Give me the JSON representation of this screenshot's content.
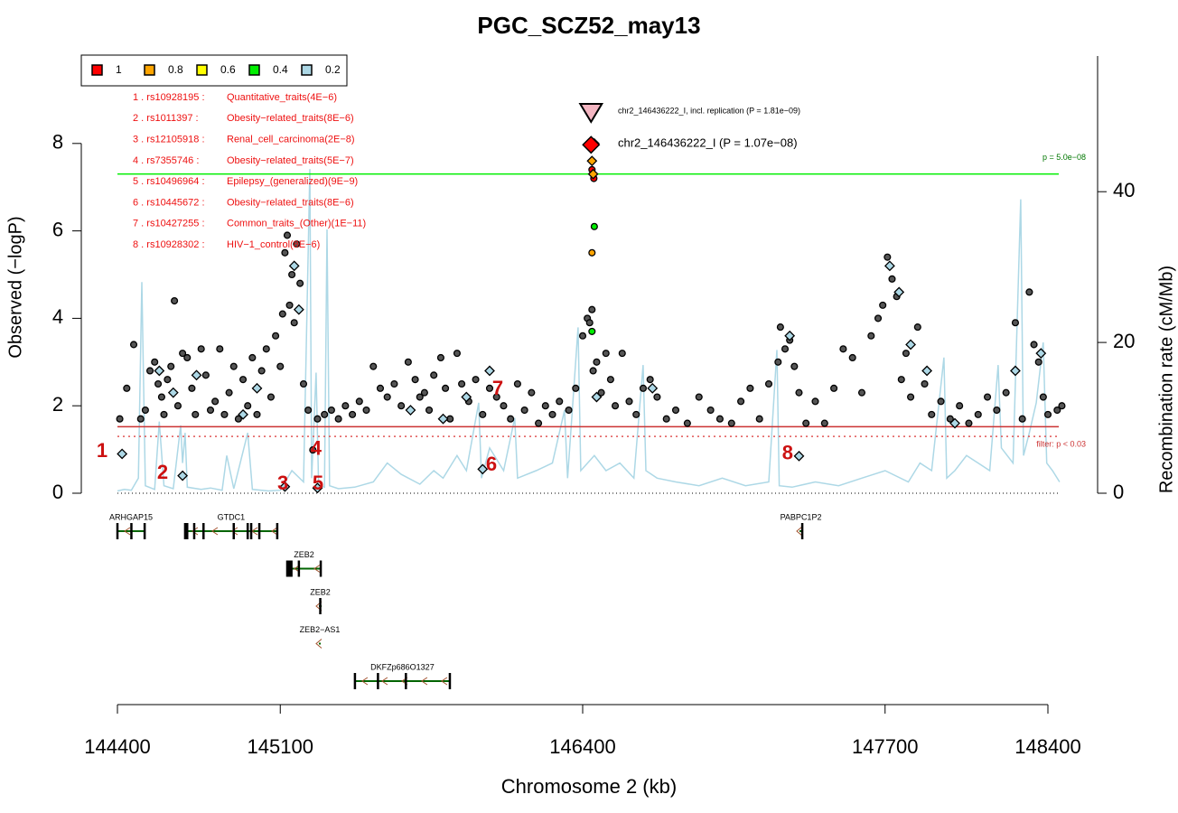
{
  "chart_data": {
    "type": "scatter",
    "title": "PGC_SCZ52_may13",
    "xlabel": "Chromosome 2 (kb)",
    "ylabel": "Observed (−logP)",
    "y2label": "Recombination rate (cM/Mb)",
    "xlim": [
      144400,
      148400
    ],
    "xticks": [
      144400,
      145100,
      146400,
      147700,
      148400
    ],
    "ylim": [
      0,
      10
    ],
    "yticks": [
      0,
      2,
      4,
      6,
      8
    ],
    "y2lim": [
      0,
      58
    ],
    "y2ticks": [
      0,
      20,
      40
    ],
    "legend": [
      {
        "label": "1",
        "color": "#ff0000"
      },
      {
        "label": "0.8",
        "color": "#ffa500"
      },
      {
        "label": "0.6",
        "color": "#ffff00"
      },
      {
        "label": "0.4",
        "color": "#00ee00"
      },
      {
        "label": "0.2",
        "color": "#add8e6"
      }
    ],
    "annotations": [
      [
        "1 . rs10928195 :",
        "Quantitative_traits(4E−6)"
      ],
      [
        "2 . rs1011397 :",
        "Obesity−related_traits(8E−6)"
      ],
      [
        "3 . rs12105918 :",
        "Renal_cell_carcinoma(2E−8)"
      ],
      [
        "4 . rs7355746 :",
        "Obesity−related_traits(5E−7)"
      ],
      [
        "5 . rs10496964 :",
        "Epilepsy_(generalized)(9E−9)"
      ],
      [
        "6 . rs10445672 :",
        "Obesity−related_traits(8E−6)"
      ],
      [
        "7 . rs10427255 :",
        "Common_traits_(Other)(1E−11)"
      ],
      [
        "8 . rs10928302 :",
        "HIV−1_control(8E−6)"
      ]
    ],
    "hits": [
      {
        "label": "1",
        "x": 144334,
        "y": 0.95
      },
      {
        "label": "2",
        "x": 144594,
        "y": 0.45
      },
      {
        "label": "3",
        "x": 145111,
        "y": 0.2
      },
      {
        "label": "4",
        "x": 145254,
        "y": 1.0
      },
      {
        "label": "5",
        "x": 145262,
        "y": 0.2
      },
      {
        "label": "6",
        "x": 146008,
        "y": 0.64
      },
      {
        "label": "7",
        "x": 146035,
        "y": 2.37
      },
      {
        "label": "8",
        "x": 147281,
        "y": 0.89
      }
    ],
    "lines": [
      {
        "value": 7.3,
        "color": "#00ee00",
        "label": "p = 5.0e−08",
        "label_color": "#007700"
      },
      {
        "value": 1.52,
        "color": "#cc3333"
      },
      {
        "value": 1.3,
        "color": "#e05555",
        "dash": true,
        "label": "filter: p < 0.03",
        "label_color": "#cc3333"
      }
    ],
    "recombination": {
      "color": "#add8e6",
      "x": [
        144400,
        144430,
        144460,
        144490,
        144505,
        144520,
        144560,
        144580,
        144600,
        144640,
        144672,
        144680,
        144691,
        144700,
        144760,
        144800,
        144850,
        144870,
        144900,
        144960,
        144980,
        145050,
        145100,
        145150,
        145200,
        145227,
        145235,
        145254,
        145265,
        145290,
        145301,
        145312,
        145350,
        145420,
        145500,
        145560,
        145620,
        145700,
        145760,
        145800,
        145860,
        145900,
        145953,
        145965,
        146000,
        146060,
        146108,
        146120,
        146200,
        146270,
        146322,
        146335,
        146380,
        146392,
        146450,
        146500,
        146560,
        146620,
        146660,
        146672,
        146720,
        146800,
        146900,
        147000,
        147100,
        147200,
        147235,
        147245,
        147300,
        147400,
        147500,
        147600,
        147700,
        147800,
        147850,
        147900,
        147953,
        147965,
        148000,
        148050,
        148100,
        148150,
        148186,
        148200,
        148250,
        148283,
        148295,
        148320,
        148350,
        148380,
        148395,
        148420,
        148450
      ],
      "values": [
        0.3,
        0.5,
        0.4,
        2.0,
        28,
        1.0,
        0.5,
        9.5,
        1.0,
        0.6,
        9,
        4,
        8,
        0.8,
        0.5,
        0.7,
        0.4,
        5,
        0.6,
        8,
        0.5,
        0.3,
        0.4,
        3,
        1.5,
        43,
        2,
        16,
        1,
        0.8,
        35,
        1.0,
        0.6,
        0.8,
        1.5,
        4,
        2.5,
        1.2,
        3,
        2,
        5,
        3,
        12,
        2,
        6,
        3,
        10,
        2,
        3,
        4,
        11,
        2,
        22,
        3,
        5,
        3,
        4,
        2,
        17,
        3,
        2,
        1.5,
        1.0,
        2,
        1,
        1.5,
        19,
        1,
        0.8,
        1.5,
        1.0,
        2,
        3,
        1.5,
        4,
        3,
        18,
        2,
        3,
        5,
        4,
        3,
        17,
        6,
        4,
        39,
        5,
        8,
        12,
        20,
        4,
        3,
        1.5
      ]
    },
    "series": [
      {
        "color": "#555555",
        "marker": "circle",
        "x": [
          144410,
          144440,
          144470,
          144500,
          144520,
          144540,
          144560,
          144575,
          144590,
          144600,
          144615,
          144630,
          144645,
          144660,
          144680,
          144700,
          144720,
          144735,
          144760,
          144780,
          144800,
          144820,
          144840,
          144860,
          144880,
          144900,
          144920,
          144940,
          144960,
          144980,
          145000,
          145020,
          145040,
          145060,
          145080,
          145100,
          145110,
          145120,
          145130,
          145140,
          145150,
          145160,
          145170,
          145185,
          145200,
          145220,
          145240,
          145260,
          145290,
          145320,
          145350,
          145380,
          145410,
          145440,
          145470,
          145500,
          145530,
          145560,
          145590,
          145620,
          145650,
          145680,
          145700,
          145720,
          145740,
          145760,
          145790,
          145810,
          145830,
          145860,
          145880,
          145910,
          145940,
          145970,
          146000,
          146030,
          146060,
          146090,
          146120,
          146150,
          146180,
          146210,
          146240,
          146270,
          146300,
          146340,
          146370,
          146400,
          146420,
          146430,
          146440,
          146445,
          146460,
          146480,
          146500,
          146520,
          146540,
          146570,
          146600,
          146630,
          146660,
          146690,
          146720,
          146760,
          146800,
          146850,
          146900,
          146950,
          146990,
          147040,
          147080,
          147120,
          147160,
          147200,
          147240,
          147250,
          147270,
          147290,
          147310,
          147330,
          147360,
          147400,
          147440,
          147480,
          147520,
          147560,
          147600,
          147640,
          147670,
          147690,
          147710,
          147730,
          147750,
          147770,
          147790,
          147810,
          147840,
          147870,
          147900,
          147940,
          147980,
          148020,
          148060,
          148100,
          148140,
          148180,
          148220,
          148260,
          148290,
          148320,
          148340,
          148360,
          148380,
          148400,
          148440,
          148460
        ],
        "values": [
          1.7,
          2.4,
          3.4,
          1.7,
          1.9,
          2.8,
          3.0,
          2.5,
          2.2,
          1.8,
          2.6,
          2.9,
          4.4,
          2.0,
          3.2,
          3.1,
          2.4,
          1.8,
          3.3,
          2.7,
          1.9,
          2.1,
          3.3,
          1.8,
          2.3,
          2.9,
          1.7,
          2.6,
          2.0,
          3.1,
          1.8,
          2.8,
          3.3,
          2.2,
          3.6,
          2.9,
          4.1,
          5.5,
          5.9,
          4.3,
          5.0,
          3.9,
          5.7,
          4.8,
          2.5,
          1.9,
          0.99,
          1.7,
          1.8,
          1.9,
          1.7,
          2.0,
          1.8,
          2.1,
          1.9,
          2.9,
          2.4,
          2.2,
          2.5,
          2.0,
          3.0,
          2.6,
          2.2,
          2.3,
          1.9,
          2.7,
          3.1,
          2.4,
          1.7,
          3.2,
          2.5,
          2.1,
          2.6,
          1.8,
          2.4,
          2.2,
          2.0,
          1.7,
          2.5,
          1.9,
          2.3,
          1.6,
          2.0,
          1.8,
          2.1,
          1.9,
          2.4,
          3.6,
          4.0,
          3.9,
          4.2,
          2.8,
          3.0,
          2.3,
          3.2,
          2.6,
          2.0,
          3.2,
          2.1,
          1.8,
          2.4,
          2.6,
          2.2,
          1.7,
          1.9,
          1.6,
          2.2,
          1.9,
          1.7,
          1.6,
          2.1,
          2.4,
          1.7,
          2.5,
          3.0,
          3.8,
          3.3,
          3.5,
          2.9,
          2.3,
          1.6,
          2.1,
          1.6,
          2.4,
          3.3,
          3.1,
          2.3,
          3.6,
          4.0,
          4.3,
          5.4,
          4.9,
          4.5,
          2.6,
          3.2,
          2.2,
          3.8,
          2.5,
          1.8,
          2.1,
          1.7,
          2.0,
          1.6,
          1.8,
          2.2,
          1.9,
          2.3,
          3.9,
          1.7,
          4.6,
          3.4,
          3.0,
          2.2,
          1.8,
          1.9,
          2.0
        ]
      },
      {
        "color": "#add8e6",
        "marker": "diamond",
        "x": [
          144420,
          144580,
          144640,
          144680,
          144740,
          144940,
          145000,
          145120,
          145160,
          145180,
          145260,
          145660,
          145800,
          145900,
          145970,
          146000,
          146460,
          146700,
          147290,
          147330,
          147720,
          147760,
          147810,
          147880,
          148000,
          148260,
          148370
        ],
        "values": [
          0.9,
          2.8,
          2.3,
          0.4,
          2.7,
          1.8,
          2.4,
          0.15,
          5.2,
          4.2,
          0.12,
          1.9,
          1.7,
          2.2,
          0.55,
          2.8,
          2.2,
          2.4,
          3.6,
          0.85,
          5.2,
          4.6,
          3.4,
          2.8,
          1.6,
          2.8,
          3.2
        ]
      },
      {
        "color": "#00ee00",
        "marker": "circle",
        "x": [
          146450,
          146440
        ],
        "values": [
          6.1,
          3.7
        ]
      },
      {
        "color": "#ffa500",
        "marker": "circle",
        "x": [
          146440
        ],
        "values": [
          5.5
        ]
      },
      {
        "color": "#ff0000",
        "marker": "circle",
        "x": [
          146440,
          146448
        ],
        "values": [
          7.4,
          7.2
        ]
      },
      {
        "color": "#ffa500",
        "marker": "diamond",
        "x": [
          146440,
          146445
        ],
        "values": [
          7.6,
          7.3
        ]
      },
      {
        "color": "#ff0000",
        "marker": "diamond",
        "x": [
          146450
        ],
        "values": [
          8.0
        ]
      }
    ],
    "top": {
      "x": 146436,
      "y": 7.97,
      "color": "#ff0000",
      "label": "chr2_146436222_I (P = 1.07e−08)"
    },
    "replication": {
      "x": 146436,
      "y": 8.74,
      "color": "#f4b6c2",
      "label": "chr2_146436222_I, incl. replication (P = 1.81e−09)"
    },
    "genes": [
      {
        "name": "ARHGAP15",
        "start": 144400,
        "end": 144517,
        "row": 0,
        "exons": [
          144400,
          144460,
          144517
        ]
      },
      {
        "name": "GTDC1",
        "start": 144691,
        "end": 145087,
        "row": 0,
        "exons": [
          144691,
          144700,
          144730,
          144770,
          144900,
          144960,
          144975,
          145010,
          145087
        ]
      },
      {
        "name": "PABPC1P2",
        "start": 147332,
        "end": 147344,
        "row": 0,
        "exons": [
          147344
        ]
      },
      {
        "name": "ZEB2",
        "start": 145130,
        "end": 145274,
        "row": 1,
        "exons": [
          145130,
          145136,
          145142,
          145148,
          145180,
          145274
        ]
      },
      {
        "name": "ZEB2",
        "start": 145266,
        "end": 145278,
        "row": 2,
        "exons": [
          145272
        ]
      },
      {
        "name": "ZEB2−AS1",
        "start": 145266,
        "end": 145274,
        "row": 3,
        "exons": []
      },
      {
        "name": "DKFZp686O1327",
        "start": 145421,
        "end": 145829,
        "row": 4,
        "exons": [
          145421,
          145520,
          145640,
          145829
        ]
      }
    ]
  }
}
